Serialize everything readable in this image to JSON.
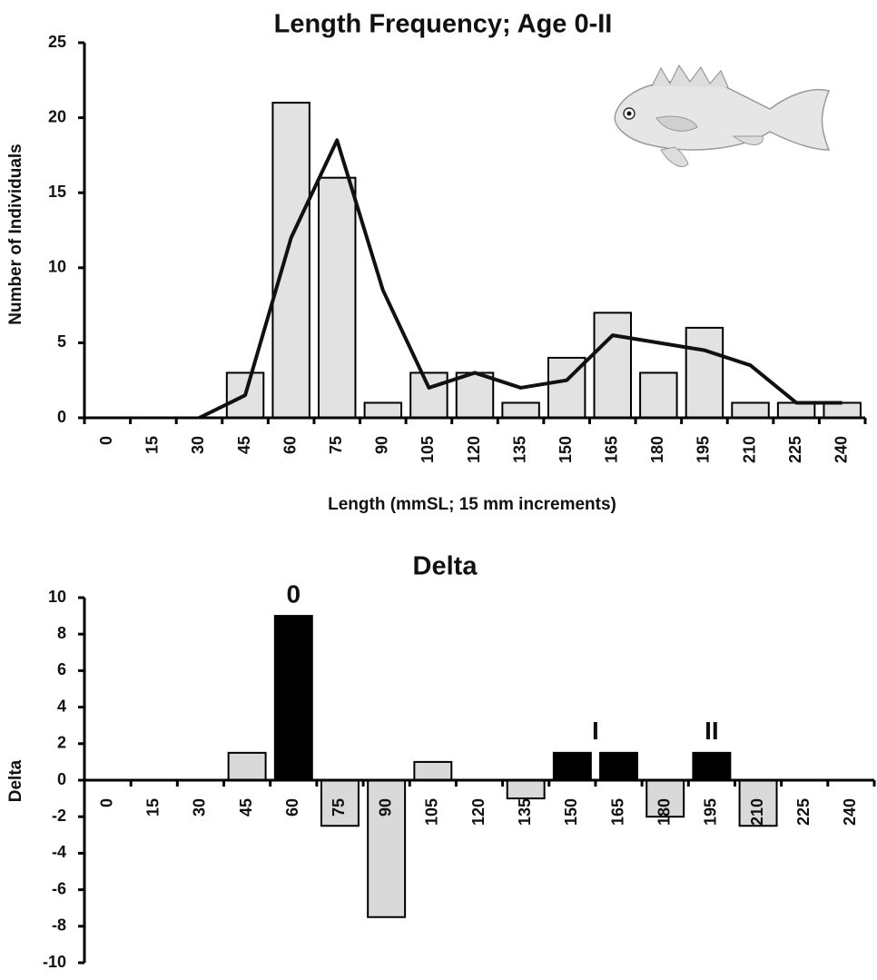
{
  "chart_data": [
    {
      "type": "bar",
      "title": "Length Frequency; Age 0-II",
      "x_label": "Length (mmSL; 15 mm increments)",
      "y_label": "Number of Individuals",
      "categories": [
        "0",
        "15",
        "30",
        "45",
        "60",
        "75",
        "90",
        "105",
        "120",
        "135",
        "150",
        "165",
        "180",
        "195",
        "210",
        "225",
        "240"
      ],
      "values": [
        0,
        0,
        0,
        3,
        21,
        16,
        1,
        3,
        3,
        1,
        4,
        7,
        3,
        6,
        1,
        1,
        1
      ],
      "color": "#e2e2e2",
      "line_values": [
        null,
        null,
        0,
        1.5,
        12,
        18.5,
        8.5,
        2,
        3,
        2,
        2.5,
        5.5,
        5,
        4.5,
        3.5,
        1,
        1
      ],
      "line_color": "#111111",
      "ylim": [
        0,
        25
      ],
      "yticks": [
        0,
        5,
        10,
        15,
        20,
        25
      ],
      "grid": false
    },
    {
      "type": "bar",
      "title": "Delta",
      "y_label": "Delta",
      "categories": [
        "0",
        "15",
        "30",
        "45",
        "60",
        "75",
        "90",
        "105",
        "120",
        "135",
        "150",
        "165",
        "180",
        "195",
        "210",
        "225",
        "240"
      ],
      "values": [
        0,
        0,
        0,
        1.5,
        9,
        -2.5,
        -7.5,
        1,
        0,
        -1,
        1.5,
        1.5,
        -2,
        1.5,
        -2.5,
        0,
        0
      ],
      "colors": [
        "#d9d9d9",
        "#d9d9d9",
        "#d9d9d9",
        "#d9d9d9",
        "#000000",
        "#d9d9d9",
        "#d9d9d9",
        "#d9d9d9",
        "#d9d9d9",
        "#d9d9d9",
        "#000000",
        "#000000",
        "#d9d9d9",
        "#000000",
        "#d9d9d9",
        "#d9d9d9",
        "#d9d9d9"
      ],
      "annotations": [
        "0",
        "I",
        "II"
      ],
      "ylim": [
        -10,
        10
      ],
      "yticks": [
        -10,
        -8,
        -6,
        -4,
        -2,
        0,
        2,
        4,
        6,
        8,
        10
      ],
      "grid": false
    }
  ]
}
